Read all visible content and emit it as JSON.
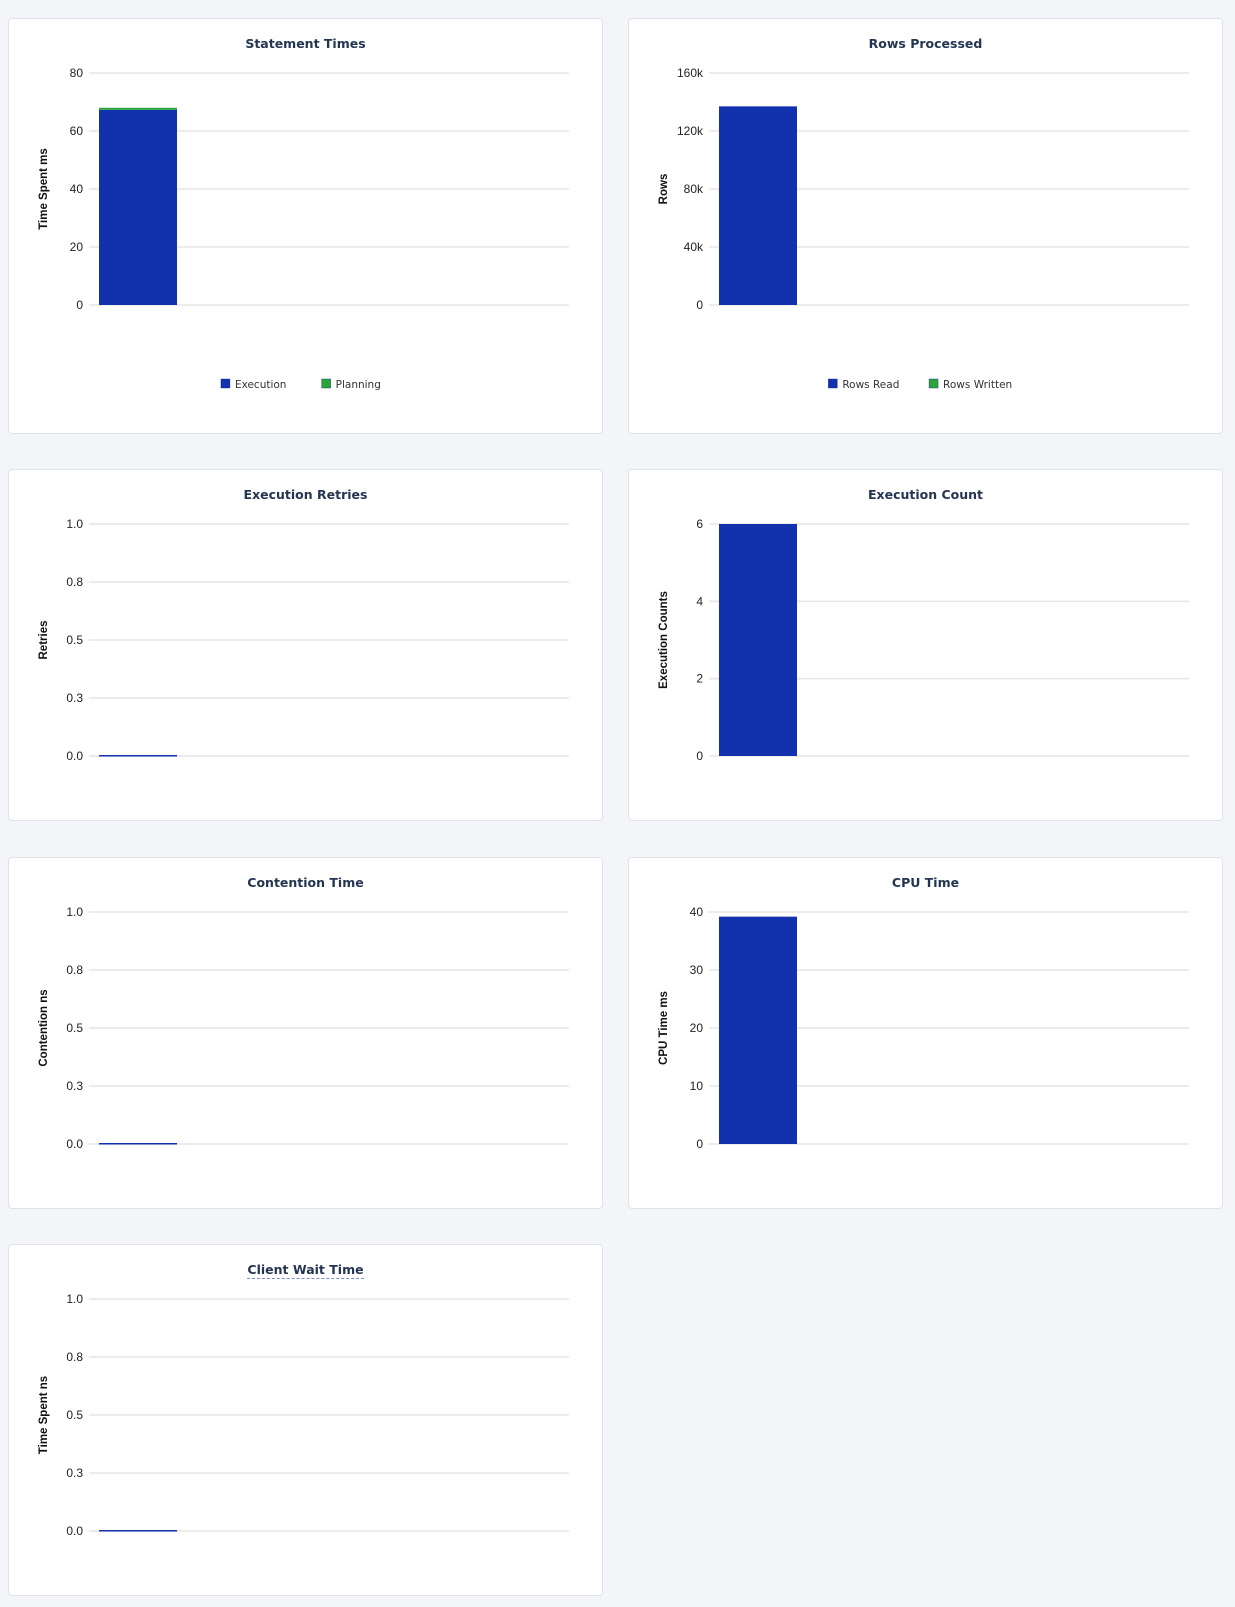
{
  "chart_data": [
    {
      "type": "bar",
      "stacked": true,
      "title": "Statement Times",
      "ylabel": "Time Spent ms",
      "ylim": [
        0,
        80
      ],
      "ticks": [
        0,
        20,
        40,
        60,
        80
      ],
      "tick_labels": [
        "0",
        "20",
        "40",
        "60",
        "80"
      ],
      "grid": true,
      "legend": "bottom",
      "series": [
        {
          "name": "Execution",
          "color": "#1232ad",
          "values": [
            67.3
          ]
        },
        {
          "name": "Planning",
          "color": "#2ba53a",
          "values": [
            0.7
          ]
        }
      ]
    },
    {
      "type": "bar",
      "stacked": true,
      "title": "Rows Processed",
      "ylabel": "Rows",
      "ylim": [
        0,
        160000
      ],
      "ticks": [
        0,
        40000,
        80000,
        120000,
        160000
      ],
      "tick_labels": [
        "0",
        "40k",
        "80k",
        "120k",
        "160k"
      ],
      "grid": true,
      "legend": "bottom",
      "series": [
        {
          "name": "Rows Read",
          "color": "#1232ad",
          "values": [
            137000
          ]
        },
        {
          "name": "Rows Written",
          "color": "#2ba53a",
          "values": [
            0
          ]
        }
      ]
    },
    {
      "type": "bar",
      "title": "Execution Retries",
      "ylabel": "Retries",
      "ylim": [
        0,
        1
      ],
      "ticks": [
        0,
        0.25,
        0.5,
        0.75,
        1
      ],
      "tick_labels": [
        "0.0",
        "0.3",
        "0.5",
        "0.8",
        "1.0"
      ],
      "grid": true,
      "series": [
        {
          "color": "#1232ad",
          "values": [
            0
          ]
        }
      ]
    },
    {
      "type": "bar",
      "title": "Execution Count",
      "ylabel": "Execution Counts",
      "ylim": [
        0,
        6
      ],
      "ticks": [
        0,
        2,
        4,
        6
      ],
      "tick_labels": [
        "0",
        "2",
        "4",
        "6"
      ],
      "grid": true,
      "series": [
        {
          "color": "#1232ad",
          "values": [
            6
          ]
        }
      ]
    },
    {
      "type": "bar",
      "title": "Contention Time",
      "ylabel": "Contention ns",
      "ylim": [
        0,
        1
      ],
      "ticks": [
        0,
        0.25,
        0.5,
        0.75,
        1
      ],
      "tick_labels": [
        "0.0",
        "0.3",
        "0.5",
        "0.8",
        "1.0"
      ],
      "grid": true,
      "series": [
        {
          "color": "#1232ad",
          "values": [
            0
          ]
        }
      ]
    },
    {
      "type": "bar",
      "title": "CPU Time",
      "ylabel": "CPU Time ms",
      "ylim": [
        0,
        40
      ],
      "ticks": [
        0,
        10,
        20,
        30,
        40
      ],
      "tick_labels": [
        "0",
        "10",
        "20",
        "30",
        "40"
      ],
      "grid": true,
      "series": [
        {
          "color": "#1232ad",
          "values": [
            39.2
          ]
        }
      ]
    },
    {
      "type": "bar",
      "title": "Client Wait Time",
      "title_has_tooltip": true,
      "ylabel": "Time Spent ns",
      "ylim": [
        0,
        1
      ],
      "ticks": [
        0,
        0.25,
        0.5,
        0.75,
        1
      ],
      "tick_labels": [
        "0.0",
        "0.3",
        "0.5",
        "0.8",
        "1.0"
      ],
      "grid": true,
      "series": [
        {
          "color": "#1232ad",
          "values": [
            0
          ]
        }
      ]
    }
  ]
}
